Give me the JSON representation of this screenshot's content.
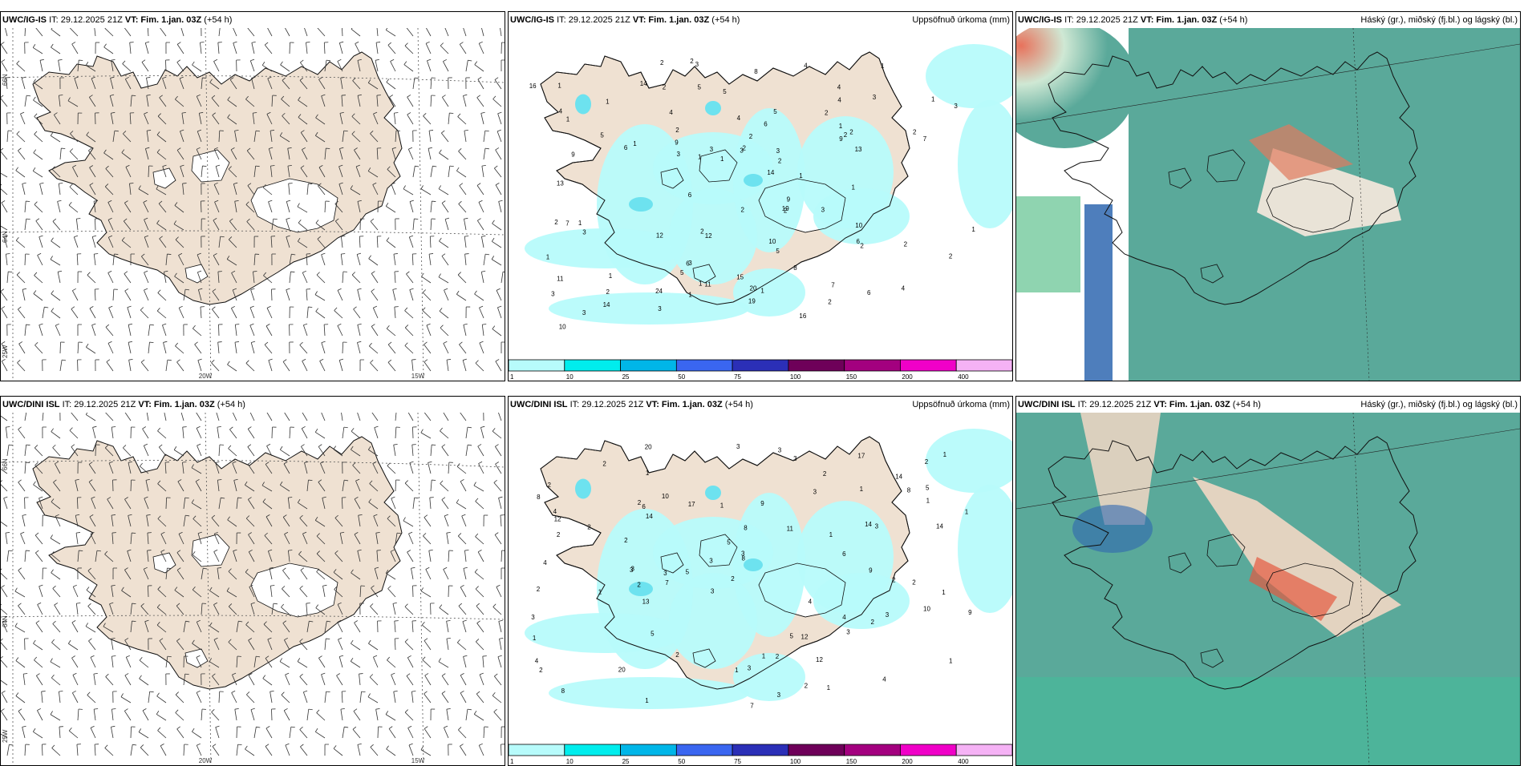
{
  "rows": [
    {
      "model": "UWC/IG-IS",
      "panels": {
        "wind": {
          "model": "UWC/IG-IS",
          "it": "IT: 29.12.2025 21Z",
          "vt": "VT: Fim. 1.jan. 03Z",
          "lead": "(+54 h)"
        },
        "precip": {
          "model": "UWC/IG-IS",
          "it": "IT: 29.12.2025 21Z",
          "vt": "VT: Fim. 1.jan. 03Z",
          "lead": "(+54 h)",
          "title": "Uppsöfnuð úrkoma (mm)"
        },
        "cloud": {
          "model": "UWC/IG-IS",
          "it": "IT: 29.12.2025 21Z",
          "vt": "VT: Fim. 1.jan. 03Z",
          "lead": "(+54 h)",
          "title": "Háský (gr.), miðský (fj.bl.) og lágský (bl.)"
        }
      }
    },
    {
      "model": "UWC/DINI ISL",
      "panels": {
        "wind": {
          "model": "UWC/DINI ISL",
          "it": "IT: 29.12.2025 21Z",
          "vt": "VT: Fim. 1.jan. 03Z",
          "lead": "(+54 h)"
        },
        "precip": {
          "model": "UWC/DINI ISL",
          "it": "IT: 29.12.2025 21Z",
          "vt": "VT: Fim. 1.jan. 03Z",
          "lead": "(+54 h)",
          "title": "Uppsöfnuð úrkoma (mm)"
        },
        "cloud": {
          "model": "UWC/DINI ISL",
          "it": "IT: 29.12.2025 21Z",
          "vt": "VT: Fim. 1.jan. 03Z",
          "lead": "(+54 h)",
          "title": "Háský (gr.), miðský (fj.bl.) og lágský (bl.)"
        }
      }
    }
  ],
  "grid_labels": {
    "lon": [
      "20W",
      "15W"
    ],
    "lat": [
      "66N",
      "64N",
      "25W"
    ]
  },
  "colorbar": {
    "ticks": [
      "1",
      "10",
      "25",
      "50",
      "75",
      "100",
      "150",
      "200",
      "400"
    ],
    "colors": [
      "#b7fbfb",
      "#00eded",
      "#00b6e8",
      "#3a66f0",
      "#2b2fb7",
      "#6e0059",
      "#a3007f",
      "#f000c8",
      "#f5b2f5"
    ]
  },
  "precip_values": {
    "top": [
      "3",
      "2",
      "9",
      "10",
      "5",
      "4",
      "4",
      "4",
      "6",
      "5",
      "3",
      "11",
      "8",
      "7",
      "9",
      "6",
      "3",
      "2",
      "3",
      "16",
      "14",
      "19",
      "3",
      "2",
      "4",
      "3",
      "6",
      "7",
      "8",
      "12",
      "5",
      "10",
      "19",
      "16",
      "20",
      "13",
      "9",
      "15",
      "6",
      "3",
      "4",
      "1",
      "1",
      "1",
      "2",
      "1",
      "1",
      "1",
      "2",
      "1",
      "1",
      "1",
      "2",
      "1",
      "1",
      "10",
      "2",
      "1",
      "2",
      "1",
      "1",
      "1",
      "2",
      "3",
      "3",
      "1",
      "2",
      "14",
      "12",
      "24",
      "2",
      "2",
      "3",
      "4",
      "9",
      "6",
      "7",
      "2",
      "3",
      "14",
      "13",
      "5",
      "2",
      "4",
      "3",
      "5",
      "11",
      "5",
      "6",
      "2",
      "3",
      "1",
      "2",
      "2",
      "2",
      "2",
      "2",
      "1"
    ],
    "bottom": [
      "3",
      "8",
      "12",
      "5",
      "5",
      "4",
      "3",
      "2",
      "3",
      "12",
      "3",
      "3",
      "5",
      "6",
      "9",
      "14",
      "9",
      "14",
      "11",
      "13",
      "17",
      "10",
      "8",
      "2",
      "2",
      "2",
      "2",
      "1",
      "2",
      "1",
      "3",
      "2",
      "4",
      "3",
      "20",
      "12",
      "14",
      "6",
      "7",
      "8",
      "3",
      "4",
      "7",
      "5",
      "3",
      "9",
      "10",
      "14",
      "20",
      "4",
      "1",
      "3",
      "1",
      "2",
      "1",
      "3",
      "1",
      "1",
      "2",
      "1",
      "2",
      "2",
      "2",
      "1",
      "1",
      "1",
      "2",
      "2",
      "1",
      "17",
      "3",
      "3",
      "4",
      "3",
      "2",
      "5",
      "4",
      "3",
      "1",
      "8",
      "2",
      "1",
      "3",
      "8",
      "1",
      "2",
      "2"
    ]
  },
  "colors": {
    "land": "#efe1d2",
    "coast": "#111111",
    "sea": "#ffffff",
    "precip_light": "#b7fbfb",
    "precip_mid": "#6de2ef",
    "cloud_high": "#246f5f",
    "cloud_mid": "#5aa99a",
    "cloud_low": "#2f67b0"
  }
}
